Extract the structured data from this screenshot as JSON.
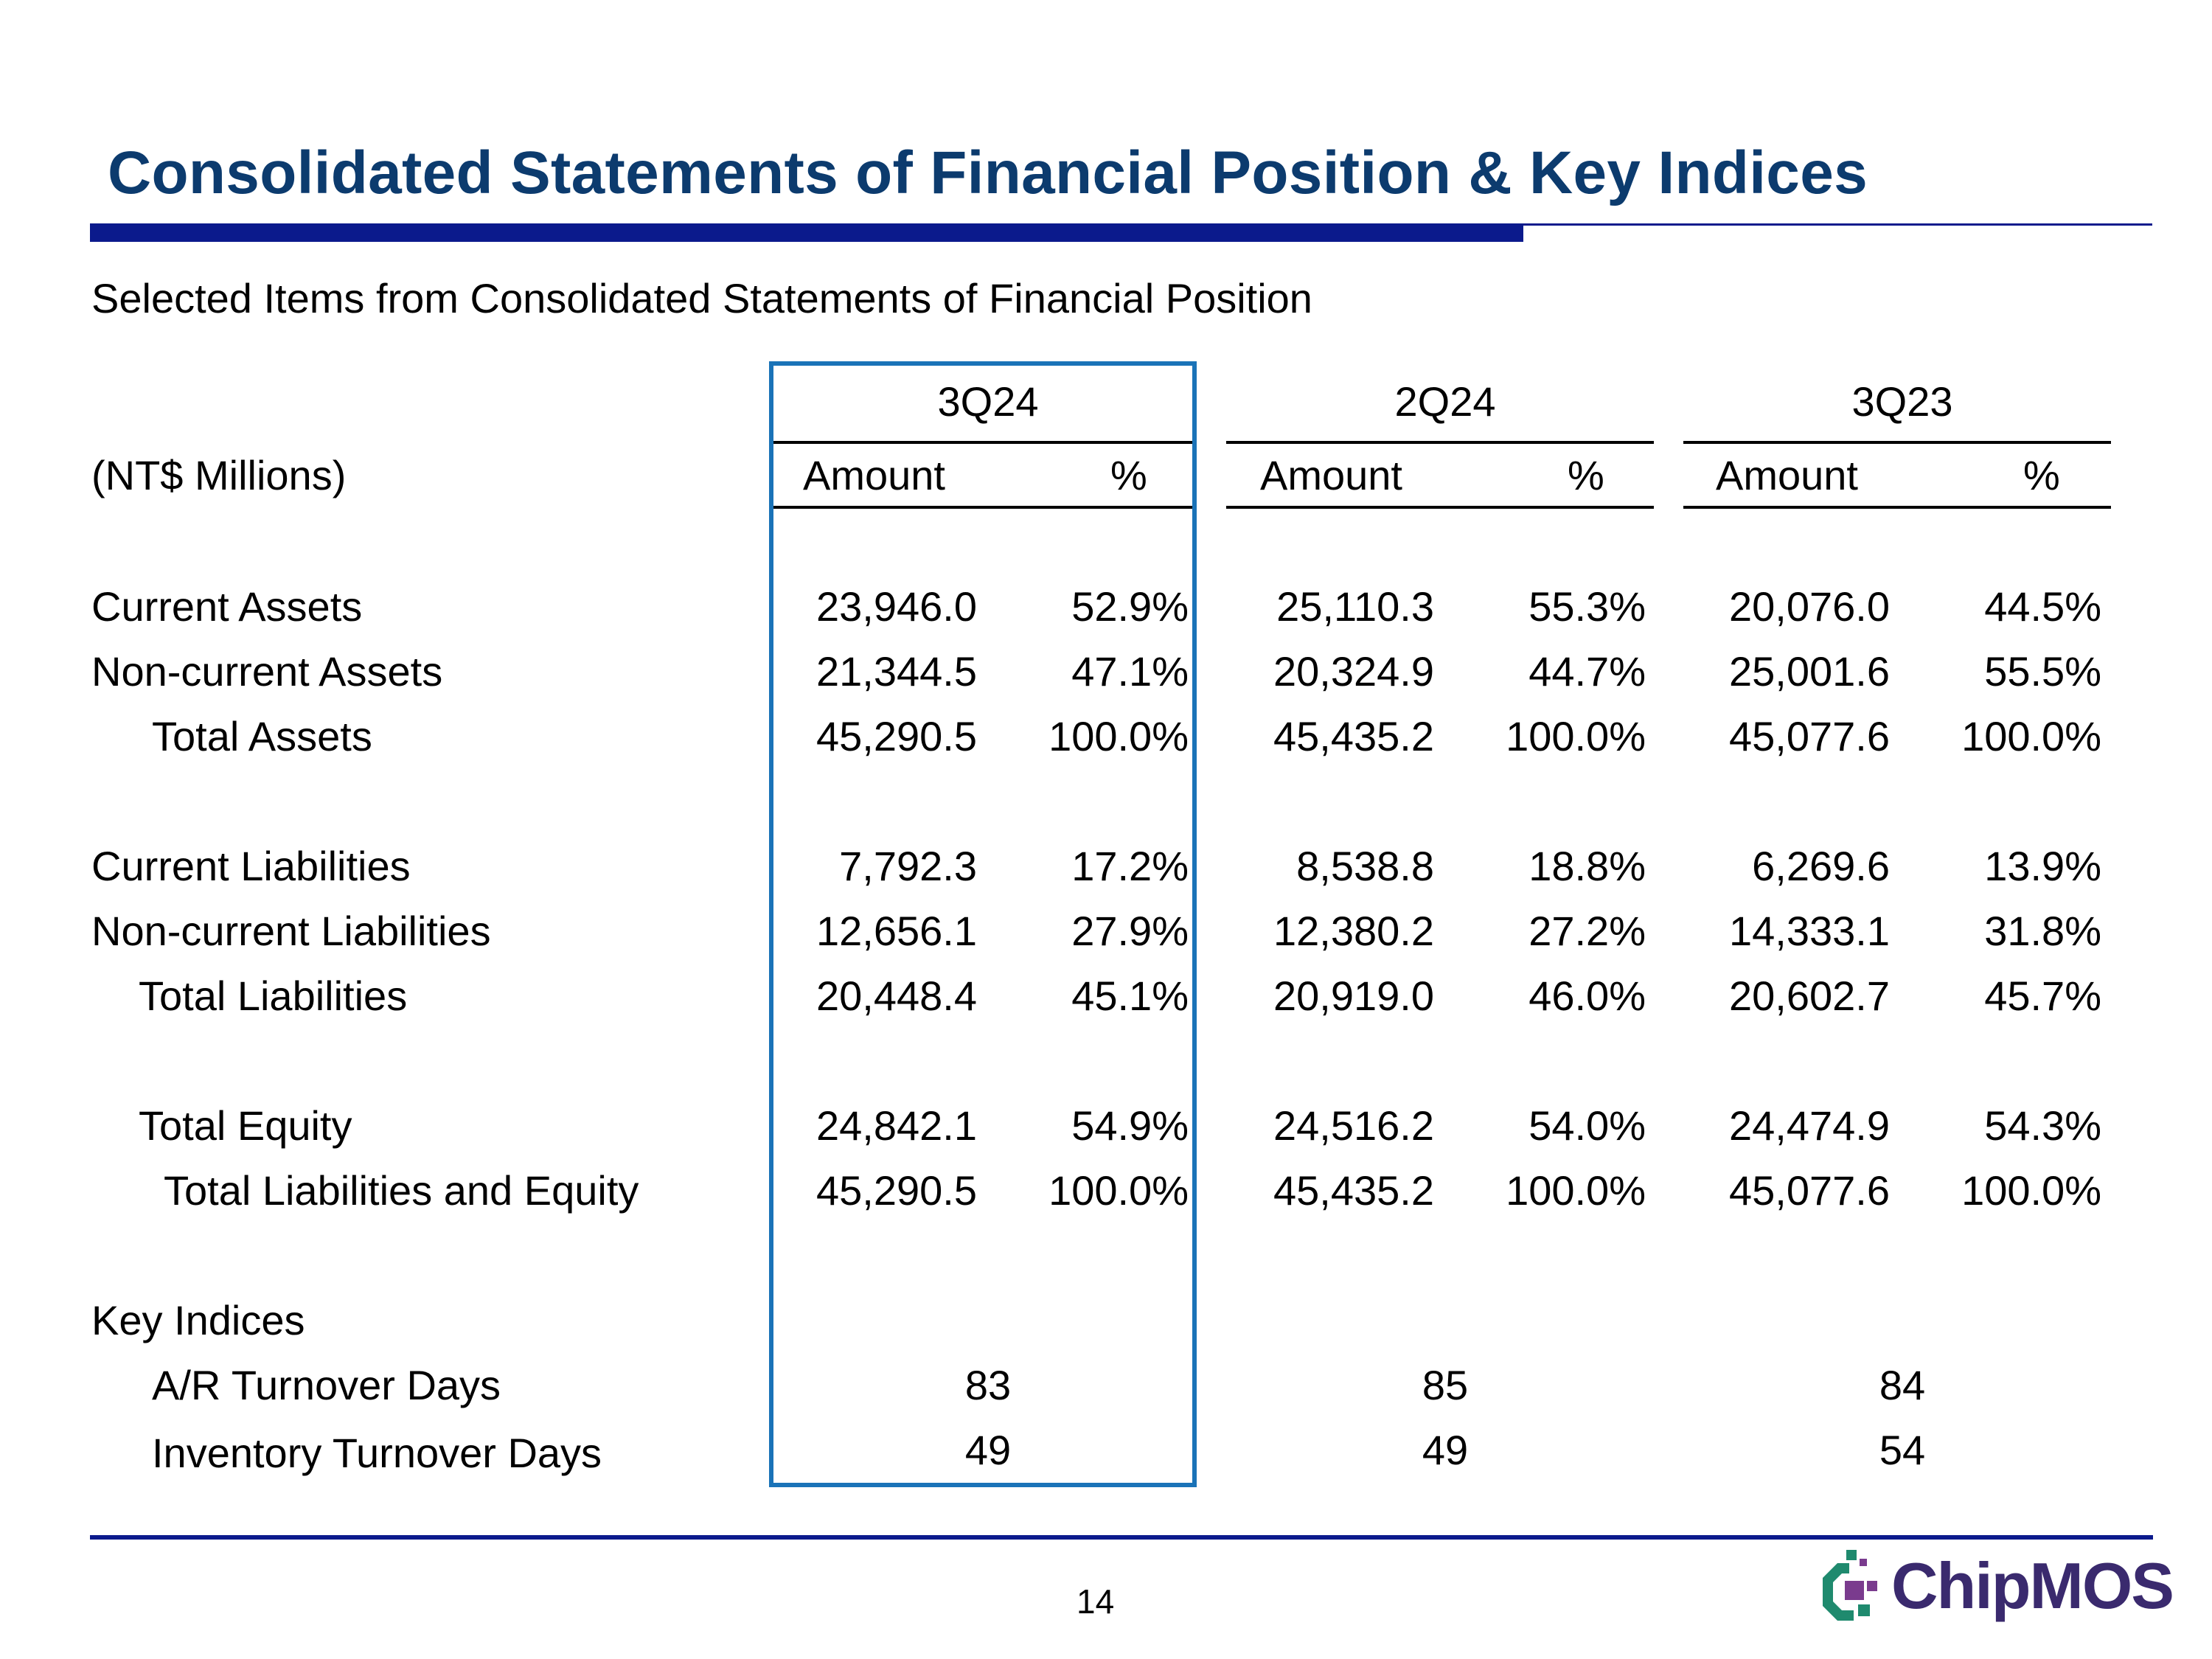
{
  "title": "Consolidated Statements of Financial Position & Key Indices",
  "subtitle": "Selected Items from Consolidated Statements of Financial Position",
  "units_label": "(NT$ Millions)",
  "periods": [
    {
      "label": "3Q24",
      "amount_header": "Amount",
      "pct_header": "%",
      "highlighted": true
    },
    {
      "label": "2Q24",
      "amount_header": "Amount",
      "pct_header": "%",
      "highlighted": false
    },
    {
      "label": "3Q23",
      "amount_header": "Amount",
      "pct_header": "%",
      "highlighted": false
    }
  ],
  "rows": [
    {
      "label": "Current Assets",
      "values": [
        [
          "23,946.0",
          "52.9%"
        ],
        [
          "25,110.3",
          "55.3%"
        ],
        [
          "20,076.0",
          "44.5%"
        ]
      ]
    },
    {
      "label": "Non-current Assets",
      "values": [
        [
          "21,344.5",
          "47.1%"
        ],
        [
          "20,324.9",
          "44.7%"
        ],
        [
          "25,001.6",
          "55.5%"
        ]
      ]
    },
    {
      "label": "Total Assets",
      "values": [
        [
          "45,290.5",
          "100.0%"
        ],
        [
          "45,435.2",
          "100.0%"
        ],
        [
          "45,077.6",
          "100.0%"
        ]
      ]
    },
    {
      "label": "Current Liabilities",
      "values": [
        [
          "7,792.3",
          "17.2%"
        ],
        [
          "8,538.8",
          "18.8%"
        ],
        [
          "6,269.6",
          "13.9%"
        ]
      ]
    },
    {
      "label": "Non-current Liabilities",
      "values": [
        [
          "12,656.1",
          "27.9%"
        ],
        [
          "12,380.2",
          "27.2%"
        ],
        [
          "14,333.1",
          "31.8%"
        ]
      ]
    },
    {
      "label": "Total Liabilities",
      "values": [
        [
          "20,448.4",
          "45.1%"
        ],
        [
          "20,919.0",
          "46.0%"
        ],
        [
          "20,602.7",
          "45.7%"
        ]
      ]
    },
    {
      "label": "Total Equity",
      "values": [
        [
          "24,842.1",
          "54.9%"
        ],
        [
          "24,516.2",
          "54.0%"
        ],
        [
          "24,474.9",
          "54.3%"
        ]
      ]
    },
    {
      "label": "Total Liabilities and Equity",
      "values": [
        [
          "45,290.5",
          "100.0%"
        ],
        [
          "45,435.2",
          "100.0%"
        ],
        [
          "45,077.6",
          "100.0%"
        ]
      ]
    }
  ],
  "key_indices": {
    "heading": "Key Indices",
    "rows": [
      {
        "label": "A/R Turnover Days",
        "values": [
          "83",
          "85",
          "84"
        ]
      },
      {
        "label": "Inventory Turnover Days",
        "values": [
          "49",
          "49",
          "54"
        ]
      }
    ]
  },
  "page_number": "14",
  "logo": {
    "text": "ChipMOS",
    "brand_color": "#3a2a6e",
    "accent_color": "#1f8a6e"
  },
  "colors": {
    "title": "#0c3b6e",
    "rule": "#0b1a8c",
    "highlight_box": "#1a73b8"
  }
}
